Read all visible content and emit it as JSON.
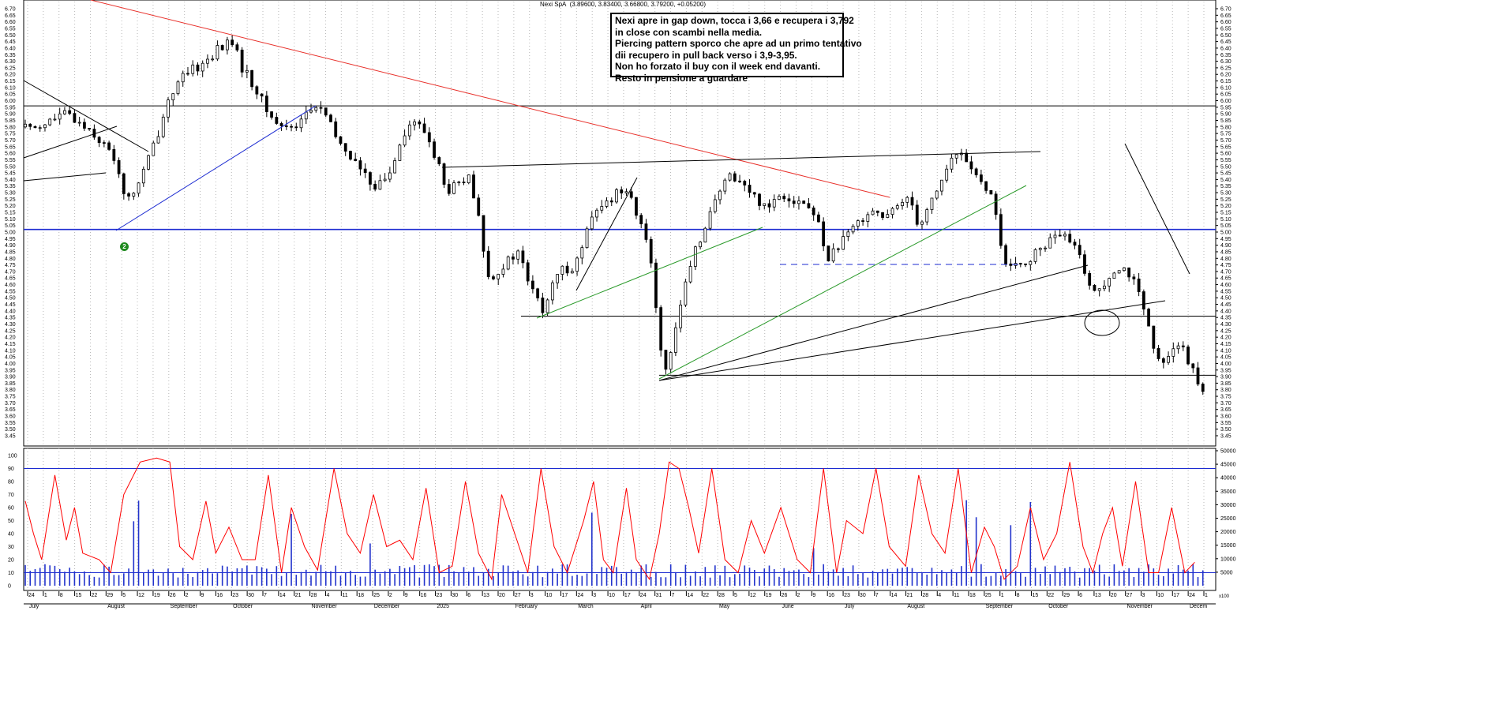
{
  "header": {
    "symbol": "Nexi SpA",
    "ohlc": "(3.89600, 3.83400, 3.66800, 3.79200, +0.05200)"
  },
  "annotation": {
    "lines": [
      "Nexi apre in gap down, tocca i 3,66 e recupera i 3,792",
      "in close con scambi nella media.",
      "Piercing pattern sporco che apre ad un primo tentativo",
      "dii recupero in pull back verso i 3,9-3,95.",
      "Non ho forzato il buy con il week end davanti.",
      "Resto in pensione a guardare"
    ]
  },
  "marker": {
    "label": "2"
  },
  "colors": {
    "candle": "#000000",
    "red_trend": "#e8302a",
    "blue_level": "#1c2bd1",
    "green_trend": "#2a9a2a",
    "oscillator": "#ff0000",
    "volume": "#2233cc"
  },
  "chart_data": {
    "type": "candlestick",
    "price_axis": {
      "ylim": [
        3.4,
        6.72
      ],
      "ticks": [
        "6.70",
        "6.65",
        "6.60",
        "6.55",
        "6.50",
        "6.45",
        "6.40",
        "6.35",
        "6.30",
        "6.25",
        "6.20",
        "6.15",
        "6.10",
        "6.05",
        "6.00",
        "5.95",
        "5.90",
        "5.85",
        "5.80",
        "5.75",
        "5.70",
        "5.65",
        "5.60",
        "5.55",
        "5.50",
        "5.45",
        "5.40",
        "5.35",
        "5.30",
        "5.25",
        "5.20",
        "5.15",
        "5.10",
        "5.05",
        "5.00",
        "4.95",
        "4.90",
        "4.85",
        "4.80",
        "4.75",
        "4.70",
        "4.65",
        "4.60",
        "4.55",
        "4.50",
        "4.45",
        "4.40",
        "4.35",
        "4.30",
        "4.25",
        "4.20",
        "4.15",
        "4.10",
        "4.05",
        "4.00",
        "3.95",
        "3.90",
        "3.85",
        "3.80",
        "3.75",
        "3.70",
        "3.65",
        "3.60",
        "3.55",
        "3.50",
        "3.45"
      ]
    },
    "oscillator_axis": {
      "ylim": [
        0,
        100
      ],
      "ticks": [
        "100",
        "90",
        "80",
        "70",
        "60",
        "50",
        "40",
        "30",
        "20",
        "10",
        "0"
      ],
      "levels": [
        90,
        10
      ]
    },
    "volume_axis": {
      "ylim": [
        0,
        50000
      ],
      "ticks": [
        "50000",
        "45000",
        "40000",
        "35000",
        "30000",
        "25000",
        "20000",
        "15000",
        "10000",
        "5000"
      ],
      "unit": "x100"
    },
    "horizontal_levels": [
      {
        "price": 5.96,
        "color": "black"
      },
      {
        "price": 5.02,
        "color": "blue"
      },
      {
        "price": 4.36,
        "color": "black"
      },
      {
        "price": 3.91,
        "color": "black"
      }
    ],
    "date_ticks": [
      "24",
      "1",
      "8",
      "15",
      "22",
      "29",
      "5",
      "12",
      "19",
      "26",
      "2",
      "9",
      "16",
      "23",
      "30",
      "7",
      "14",
      "21",
      "28",
      "4",
      "11",
      "18",
      "25",
      "2",
      "9",
      "16",
      "23",
      "30",
      "6",
      "13",
      "20",
      "27",
      "3",
      "10",
      "17",
      "24",
      "3",
      "10",
      "17",
      "24",
      "31",
      "7",
      "14",
      "22",
      "28",
      "5",
      "12",
      "19",
      "26",
      "2",
      "9",
      "16",
      "23",
      "30",
      "7",
      "14",
      "21",
      "28",
      "4",
      "11",
      "18",
      "25",
      "1",
      "8",
      "15",
      "22",
      "29",
      "6",
      "13",
      "20",
      "27",
      "3",
      "10",
      "17",
      "24",
      "1"
    ],
    "month_labels": [
      "July",
      "August",
      "September",
      "October",
      "November",
      "December",
      "2025",
      "February",
      "March",
      "April",
      "May",
      "June",
      "July",
      "August",
      "September",
      "October",
      "November",
      "Decem"
    ],
    "price_waypoints": [
      [
        0,
        5.8
      ],
      [
        10,
        5.82
      ],
      [
        25,
        5.9
      ],
      [
        40,
        5.78
      ],
      [
        55,
        5.55
      ],
      [
        62,
        5.22
      ],
      [
        70,
        5.4
      ],
      [
        80,
        5.72
      ],
      [
        88,
        6.05
      ],
      [
        98,
        6.2
      ],
      [
        110,
        6.3
      ],
      [
        118,
        6.4
      ],
      [
        126,
        6.45
      ],
      [
        132,
        6.25
      ],
      [
        140,
        6.1
      ],
      [
        148,
        5.9
      ],
      [
        156,
        5.8
      ],
      [
        165,
        5.82
      ],
      [
        172,
        5.92
      ],
      [
        180,
        5.95
      ],
      [
        190,
        5.7
      ],
      [
        200,
        5.55
      ],
      [
        208,
        5.4
      ],
      [
        215,
        5.35
      ],
      [
        222,
        5.45
      ],
      [
        228,
        5.7
      ],
      [
        236,
        5.85
      ],
      [
        244,
        5.75
      ],
      [
        252,
        5.5
      ],
      [
        256,
        5.3
      ],
      [
        262,
        5.35
      ],
      [
        270,
        5.4
      ],
      [
        276,
        5.1
      ],
      [
        282,
        4.65
      ],
      [
        292,
        4.75
      ],
      [
        300,
        4.85
      ],
      [
        307,
        4.6
      ],
      [
        315,
        4.4
      ],
      [
        325,
        4.7
      ],
      [
        335,
        4.75
      ],
      [
        345,
        5.1
      ],
      [
        352,
        5.2
      ],
      [
        360,
        5.3
      ],
      [
        367,
        5.35
      ],
      [
        374,
        5.05
      ],
      [
        380,
        4.9
      ],
      [
        386,
        4.2
      ],
      [
        390,
        3.92
      ],
      [
        395,
        4.25
      ],
      [
        400,
        4.5
      ],
      [
        408,
        4.85
      ],
      [
        415,
        5.1
      ],
      [
        423,
        5.3
      ],
      [
        430,
        5.45
      ],
      [
        438,
        5.35
      ],
      [
        445,
        5.25
      ],
      [
        452,
        5.2
      ],
      [
        460,
        5.3
      ],
      [
        468,
        5.25
      ],
      [
        476,
        5.2
      ],
      [
        482,
        5.1
      ],
      [
        488,
        4.8
      ],
      [
        494,
        4.88
      ],
      [
        500,
        4.95
      ],
      [
        508,
        5.1
      ],
      [
        516,
        5.18
      ],
      [
        524,
        5.1
      ],
      [
        532,
        5.2
      ],
      [
        538,
        5.3
      ],
      [
        544,
        5.05
      ],
      [
        550,
        5.2
      ],
      [
        558,
        5.4
      ],
      [
        564,
        5.55
      ],
      [
        570,
        5.6
      ],
      [
        576,
        5.5
      ],
      [
        584,
        5.3
      ],
      [
        590,
        5.25
      ],
      [
        594,
        4.9
      ],
      [
        598,
        4.7
      ],
      [
        606,
        4.75
      ],
      [
        614,
        4.82
      ],
      [
        622,
        4.92
      ],
      [
        630,
        4.98
      ],
      [
        638,
        4.9
      ],
      [
        645,
        4.72
      ],
      [
        650,
        4.52
      ],
      [
        656,
        4.6
      ],
      [
        662,
        4.72
      ],
      [
        668,
        4.75
      ],
      [
        674,
        4.65
      ],
      [
        680,
        4.45
      ],
      [
        685,
        4.2
      ],
      [
        690,
        4.0
      ],
      [
        697,
        4.1
      ],
      [
        703,
        4.15
      ],
      [
        708,
        4.0
      ],
      [
        714,
        3.88
      ],
      [
        718,
        3.79
      ]
    ],
    "oscillator_waypoints": [
      [
        0,
        65
      ],
      [
        5,
        40
      ],
      [
        10,
        20
      ],
      [
        18,
        85
      ],
      [
        25,
        35
      ],
      [
        30,
        60
      ],
      [
        35,
        25
      ],
      [
        45,
        20
      ],
      [
        52,
        10
      ],
      [
        60,
        70
      ],
      [
        70,
        95
      ],
      [
        80,
        98
      ],
      [
        88,
        95
      ],
      [
        94,
        30
      ],
      [
        102,
        20
      ],
      [
        110,
        65
      ],
      [
        116,
        25
      ],
      [
        124,
        45
      ],
      [
        132,
        20
      ],
      [
        140,
        20
      ],
      [
        148,
        85
      ],
      [
        156,
        10
      ],
      [
        162,
        60
      ],
      [
        170,
        30
      ],
      [
        178,
        12
      ],
      [
        188,
        90
      ],
      [
        196,
        40
      ],
      [
        204,
        25
      ],
      [
        212,
        70
      ],
      [
        220,
        30
      ],
      [
        228,
        35
      ],
      [
        236,
        20
      ],
      [
        244,
        75
      ],
      [
        252,
        10
      ],
      [
        260,
        15
      ],
      [
        268,
        80
      ],
      [
        276,
        25
      ],
      [
        284,
        5
      ],
      [
        290,
        70
      ],
      [
        298,
        40
      ],
      [
        306,
        10
      ],
      [
        314,
        90
      ],
      [
        322,
        30
      ],
      [
        330,
        10
      ],
      [
        340,
        50
      ],
      [
        346,
        80
      ],
      [
        352,
        20
      ],
      [
        358,
        10
      ],
      [
        366,
        75
      ],
      [
        372,
        20
      ],
      [
        380,
        5
      ],
      [
        386,
        40
      ],
      [
        392,
        95
      ],
      [
        398,
        90
      ],
      [
        404,
        60
      ],
      [
        410,
        25
      ],
      [
        418,
        90
      ],
      [
        426,
        20
      ],
      [
        434,
        10
      ],
      [
        442,
        50
      ],
      [
        450,
        25
      ],
      [
        460,
        60
      ],
      [
        470,
        20
      ],
      [
        478,
        10
      ],
      [
        486,
        90
      ],
      [
        494,
        10
      ],
      [
        500,
        50
      ],
      [
        510,
        40
      ],
      [
        518,
        90
      ],
      [
        526,
        30
      ],
      [
        536,
        15
      ],
      [
        544,
        85
      ],
      [
        552,
        40
      ],
      [
        560,
        25
      ],
      [
        568,
        90
      ],
      [
        576,
        10
      ],
      [
        584,
        45
      ],
      [
        590,
        30
      ],
      [
        596,
        5
      ],
      [
        604,
        15
      ],
      [
        612,
        60
      ],
      [
        620,
        20
      ],
      [
        628,
        40
      ],
      [
        636,
        95
      ],
      [
        644,
        30
      ],
      [
        650,
        10
      ],
      [
        656,
        40
      ],
      [
        662,
        60
      ],
      [
        668,
        15
      ],
      [
        676,
        80
      ],
      [
        684,
        10
      ],
      [
        690,
        10
      ],
      [
        698,
        60
      ],
      [
        706,
        10
      ],
      [
        712,
        18
      ]
    ]
  }
}
